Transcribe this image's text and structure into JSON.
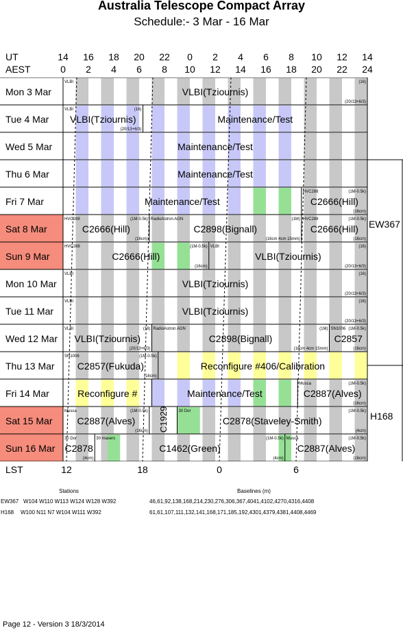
{
  "header": {
    "title": "Australia Telescope Compact Array",
    "subtitle": "Schedule:- 3  Mar - 16 Mar"
  },
  "axes": {
    "ut_label": "UT",
    "aest_label": "AEST",
    "lst_label": "LST",
    "ut_ticks": [
      "14",
      "16",
      "18",
      "20",
      "22",
      "0",
      "2",
      "4",
      "6",
      "8",
      "10",
      "12",
      "14"
    ],
    "aest_ticks": [
      "0",
      "2",
      "4",
      "6",
      "8",
      "10",
      "12",
      "14",
      "16",
      "18",
      "20",
      "22",
      "24"
    ],
    "lst_ticks": [
      "12",
      "18",
      "0",
      "6"
    ]
  },
  "colors": {
    "grey_band": "#c8c8c8",
    "blue_band": "#c8c8f8",
    "green_band": "#96e096",
    "yellow_band": "#ffff99",
    "weekend": "#f58c7c"
  },
  "days": [
    {
      "label": "Mon   3  Mar",
      "weekend": false,
      "band": "grey",
      "blocks": [
        {
          "name": "VLBI(Tziournis)",
          "from": 0,
          "to": 24,
          "tl": "VLBI",
          "tr": "(16)",
          "br": "(20/13+6/3)"
        }
      ]
    },
    {
      "label": "Tue   4  Mar",
      "weekend": false,
      "band": "blue",
      "blocks": [
        {
          "name": "VLBI(Tziournis)",
          "from": 0,
          "to": 6.3,
          "tl": "VLBI",
          "tr": "(16)",
          "br": "(20/13+6/3)"
        },
        {
          "name": "Maintenance/Test",
          "from": 6.3,
          "to": 24
        }
      ]
    },
    {
      "label": "Wed   5  Mar",
      "weekend": false,
      "band": "blue",
      "blocks": [
        {
          "name": "Maintenance/Test",
          "from": 0,
          "to": 24
        }
      ]
    },
    {
      "label": "Thu   6  Mar",
      "weekend": false,
      "band": "blue",
      "blocks": [
        {
          "name": "Maintenance/Test",
          "from": 0,
          "to": 24
        }
      ]
    },
    {
      "label": "Fri   7  Mar",
      "weekend": false,
      "band": "blue",
      "greens": [
        15,
        17
      ],
      "blocks": [
        {
          "name": "Maintenance/Test",
          "from": 0,
          "to": 18.8
        },
        {
          "name": "C2666(Hill)",
          "from": 18.8,
          "to": 24,
          "tl": "HVC288",
          "tr": "(1M-0.5k)",
          "br": "(16cm)"
        }
      ]
    },
    {
      "label": "Sat   8  Mar",
      "weekend": true,
      "band": "grey",
      "blocks": [
        {
          "name": "C2666(Hill)",
          "from": 0,
          "to": 6.8,
          "tl": "HVC288",
          "tr": "(1M-0.5k)",
          "br": "(16cm)"
        },
        {
          "name": "C2898(Bignall)",
          "from": 6.8,
          "to": 18.8,
          "tl": "RadioAstron AGN",
          "tr": "(1M)",
          "br": "(16cm 4cm 15mm)"
        },
        {
          "name": "C2666(Hill)",
          "from": 18.8,
          "to": 24,
          "tl": "HVC288",
          "tr": "(1M-0.5k)",
          "br": "(16cm)"
        }
      ]
    },
    {
      "label": "Sun   9  Mar",
      "weekend": true,
      "band": "grey",
      "greens": [
        7,
        9
      ],
      "blocks": [
        {
          "name": "C2666(Hill)",
          "from": 0,
          "to": 11.5,
          "tl": "HVC288",
          "tr": "(1M-0.5k)",
          "br": "(16cm)"
        },
        {
          "name": "VLBI(Tziournis)",
          "from": 11.5,
          "to": 24,
          "tl": "VLBI",
          "tr": "(16)",
          "br": "(20/13+6/3)"
        }
      ]
    },
    {
      "label": "Mon  10  Mar",
      "weekend": false,
      "band": "grey",
      "blocks": [
        {
          "name": "VLBI(Tziournis)",
          "from": 0,
          "to": 24,
          "tl": "VLBI",
          "tr": "(16)",
          "br": "(20/13+6/3)"
        }
      ]
    },
    {
      "label": "Tue  11  Mar",
      "weekend": false,
      "band": "grey",
      "blocks": [
        {
          "name": "VLBI(Tziournis)",
          "from": 0,
          "to": 24,
          "tl": "VLBI",
          "tr": "(16)",
          "br": "(20/13+6/3)"
        }
      ]
    },
    {
      "label": "Wed  12  Mar",
      "weekend": false,
      "band": "grey",
      "blocks": [
        {
          "name": "VLBI(Tziournis)",
          "from": 0,
          "to": 7,
          "tl": "VLBI",
          "tr": "(16)",
          "br": "(20/13+6/3)"
        },
        {
          "name": "C2898(Bignall)",
          "from": 7,
          "to": 21,
          "tl": "RadioAstron AGN",
          "tr": "(1M)",
          "br": "(16cm 4cm 15mm)"
        },
        {
          "name": "C2857",
          "from": 21,
          "to": 24,
          "tl": "SN1006",
          "tr": "(1M-0.5k)",
          "br": "(16cm)"
        }
      ]
    },
    {
      "label": "Thu  13  Mar",
      "weekend": false,
      "band": "yellow",
      "blocks": [
        {
          "name": "C2857(Fukuda)",
          "from": 0,
          "to": 7.5,
          "tl": "SN1006",
          "tr": "(1M-0.5k)",
          "br": "(16cm)"
        },
        {
          "name": "Reconfigure #406/Calibration",
          "from": 7.5,
          "to": 24
        }
      ]
    },
    {
      "label": "Fri   14  Mar",
      "weekend": false,
      "band": "yellow_then_grey",
      "greens": [
        15,
        17
      ],
      "blocks": [
        {
          "name": "Reconfigure #",
          "from": 0,
          "to": 7
        },
        {
          "name": "Maintenance/Test",
          "from": 7,
          "to": 18.5
        },
        {
          "name": "C2887(Alves)",
          "from": 18.5,
          "to": 24,
          "tl": "Musca",
          "tr": "(1M-0.5k)",
          "br": "(16cm)"
        }
      ]
    },
    {
      "label": "Sat   15  Mar",
      "weekend": true,
      "band": "grey",
      "greens": [
        9,
        9.8
      ],
      "blocks": [
        {
          "name": "C2887(Alves)",
          "from": 0,
          "to": 6.8,
          "tl": "Musca",
          "tr": "(1M-0.5k)",
          "br": "(16cm)"
        },
        {
          "name": "C1929",
          "from": 6.8,
          "to": 9,
          "vertical": true
        },
        {
          "name": "C2878(Staveley-Smith)",
          "from": 9,
          "to": 24,
          "tl": "30 Dor",
          "tr": "(1M-0.5k)",
          "br": "(4cm)"
        }
      ]
    },
    {
      "label": "Sun   16  Mar",
      "weekend": true,
      "band": "grey",
      "greens": [
        3.5,
        17
      ],
      "blocks": [
        {
          "name": "C2878",
          "from": 0,
          "to": 2.5,
          "tl": "30 Dor",
          "br": "(4cm)"
        },
        {
          "name": "C1462(Green)",
          "from": 2.5,
          "to": 17.5,
          "tl": "30 masers",
          "tr": "(1M-0.5k)",
          "br": "(4cm)"
        },
        {
          "name": "C2887(Alves)",
          "from": 17.5,
          "to": 24,
          "tl": "Musca",
          "tr": "(1M-0.5k)",
          "br": "(16cm)"
        }
      ]
    }
  ],
  "configs": [
    {
      "name": "EW367"
    },
    {
      "name": "H168"
    }
  ],
  "stations": {
    "heading": "Stations",
    "baselines_heading": "Baselines (m)",
    "rows": [
      {
        "config": "EW367",
        "stations": "W104 W110 W113 W124 W128 W392",
        "baselines": "46,61,92,138,168,214,230,276,306,367,4041,4102,4270,4316,4408"
      },
      {
        "config": "H168",
        "stations": "W100 N11 N7 W104 W111 W392",
        "baselines": "61,61,107,111,132,141,168,171,185,192,4301,4379,4381,4408,4469"
      }
    ]
  },
  "footer": "Page 12 - Version 3  18/3/2014"
}
